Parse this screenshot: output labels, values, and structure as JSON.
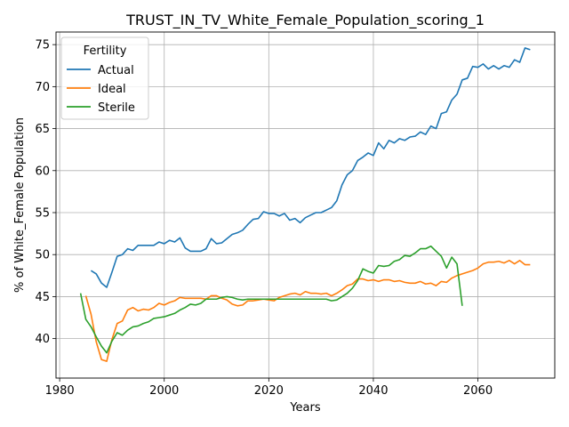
{
  "chart_data": {
    "type": "line",
    "title": "TRUST_IN_TV_White_Female_Population_scoring_1",
    "xlabel": "Years",
    "ylabel": "% of White_Female Population",
    "xlim": [
      1979.3,
      2074.7
    ],
    "ylim": [
      35.3,
      76.5
    ],
    "xticks": [
      1980,
      2000,
      2020,
      2040,
      2060
    ],
    "yticks": [
      40,
      45,
      50,
      55,
      60,
      65,
      70,
      75
    ],
    "grid": true,
    "legend": {
      "title": "Fertility",
      "placement": "upper-left"
    },
    "series": [
      {
        "name": "Actual",
        "color": "#1f77b4",
        "x": [
          1986,
          1987,
          1988,
          1989,
          1990,
          1991,
          1992,
          1993,
          1994,
          1995,
          1996,
          1997,
          1998,
          1999,
          2000,
          2001,
          2002,
          2003,
          2004,
          2005,
          2006,
          2007,
          2008,
          2009,
          2010,
          2011,
          2012,
          2013,
          2014,
          2015,
          2016,
          2017,
          2018,
          2019,
          2020,
          2021,
          2022,
          2023,
          2024,
          2025,
          2026,
          2027,
          2028,
          2029,
          2030,
          2031,
          2032,
          2033,
          2034,
          2035,
          2036,
          2037,
          2038,
          2039,
          2040,
          2041,
          2042,
          2043,
          2044,
          2045,
          2046,
          2047,
          2048,
          2049,
          2050,
          2051,
          2052,
          2053,
          2054,
          2055,
          2056,
          2057,
          2058,
          2059,
          2060,
          2061,
          2062,
          2063,
          2064,
          2065,
          2066,
          2067,
          2068,
          2069,
          2070
        ],
        "y": [
          48.1,
          47.7,
          46.6,
          46.1,
          47.9,
          49.8,
          50.0,
          50.7,
          50.5,
          51.1,
          51.1,
          51.1,
          51.1,
          51.5,
          51.3,
          51.7,
          51.5,
          52.0,
          50.8,
          50.4,
          50.4,
          50.4,
          50.7,
          51.9,
          51.3,
          51.4,
          51.9,
          52.4,
          52.6,
          52.9,
          53.6,
          54.2,
          54.3,
          55.1,
          54.9,
          54.9,
          54.6,
          54.9,
          54.1,
          54.3,
          53.8,
          54.4,
          54.7,
          55.0,
          55.0,
          55.3,
          55.6,
          56.4,
          58.3,
          59.5,
          60.0,
          61.2,
          61.6,
          62.1,
          61.8,
          63.3,
          62.6,
          63.6,
          63.3,
          63.8,
          63.6,
          64.0,
          64.1,
          64.6,
          64.3,
          65.3,
          65.0,
          66.8,
          67.0,
          68.4,
          69.1,
          70.8,
          71.0,
          72.4,
          72.3,
          72.7,
          72.1,
          72.5,
          72.1,
          72.5,
          72.3,
          73.2,
          72.9,
          74.6,
          74.4
        ]
      },
      {
        "name": "Ideal",
        "color": "#ff7f0e",
        "x": [
          1985,
          1986,
          1987,
          1988,
          1989,
          1990,
          1991,
          1992,
          1993,
          1994,
          1995,
          1996,
          1997,
          1998,
          1999,
          2000,
          2001,
          2002,
          2003,
          2004,
          2005,
          2006,
          2007,
          2008,
          2009,
          2010,
          2011,
          2012,
          2013,
          2014,
          2015,
          2016,
          2017,
          2018,
          2019,
          2020,
          2021,
          2022,
          2023,
          2024,
          2025,
          2026,
          2027,
          2028,
          2029,
          2030,
          2031,
          2032,
          2033,
          2034,
          2035,
          2036,
          2037,
          2038,
          2039,
          2040,
          2041,
          2042,
          2043,
          2044,
          2045,
          2046,
          2047,
          2048,
          2049,
          2050,
          2051,
          2052,
          2053,
          2054,
          2055,
          2056,
          2057,
          2058,
          2059,
          2060,
          2061,
          2062,
          2063,
          2064,
          2065,
          2066,
          2067,
          2068,
          2069,
          2070
        ],
        "y": [
          45.1,
          42.9,
          39.6,
          37.5,
          37.3,
          39.9,
          41.8,
          42.1,
          43.4,
          43.7,
          43.3,
          43.5,
          43.4,
          43.7,
          44.2,
          44.0,
          44.3,
          44.5,
          44.9,
          44.8,
          44.8,
          44.8,
          44.8,
          44.7,
          45.1,
          45.1,
          44.8,
          44.6,
          44.1,
          43.9,
          44.0,
          44.5,
          44.5,
          44.6,
          44.7,
          44.6,
          44.5,
          44.9,
          45.1,
          45.3,
          45.4,
          45.2,
          45.6,
          45.4,
          45.4,
          45.3,
          45.4,
          45.1,
          45.4,
          45.8,
          46.3,
          46.5,
          47.1,
          47.1,
          46.9,
          47.0,
          46.8,
          47.0,
          47.0,
          46.8,
          46.9,
          46.7,
          46.6,
          46.6,
          46.8,
          46.5,
          46.6,
          46.3,
          46.8,
          46.7,
          47.2,
          47.5,
          47.7,
          47.9,
          48.1,
          48.4,
          48.9,
          49.1,
          49.1,
          49.2,
          49.0,
          49.3,
          48.9,
          49.3,
          48.8,
          48.8
        ]
      },
      {
        "name": "Sterile",
        "color": "#2ca02c",
        "x": [
          1984,
          1985,
          1986,
          1987,
          1988,
          1989,
          1990,
          1991,
          1992,
          1993,
          1994,
          1995,
          1996,
          1997,
          1998,
          1999,
          2000,
          2001,
          2002,
          2003,
          2004,
          2005,
          2006,
          2007,
          2008,
          2009,
          2010,
          2011,
          2012,
          2013,
          2014,
          2015,
          2016,
          2017,
          2018,
          2019,
          2020,
          2021,
          2022,
          2023,
          2024,
          2025,
          2026,
          2027,
          2028,
          2029,
          2030,
          2031,
          2032,
          2033,
          2034,
          2035,
          2036,
          2037,
          2038,
          2039,
          2040,
          2041,
          2042,
          2043,
          2044,
          2045,
          2046,
          2047,
          2048,
          2049,
          2050,
          2051,
          2052,
          2053,
          2054,
          2055,
          2056,
          2057
        ],
        "y": [
          45.4,
          42.3,
          41.4,
          40.2,
          39.1,
          38.3,
          39.7,
          40.7,
          40.4,
          41.0,
          41.4,
          41.5,
          41.8,
          42.0,
          42.4,
          42.5,
          42.6,
          42.8,
          43.0,
          43.4,
          43.7,
          44.1,
          44.0,
          44.2,
          44.7,
          44.7,
          44.7,
          44.9,
          45.0,
          44.9,
          44.7,
          44.6,
          44.7,
          44.7,
          44.7,
          44.7,
          44.7,
          44.7,
          44.7,
          44.7,
          44.7,
          44.7,
          44.7,
          44.7,
          44.7,
          44.7,
          44.7,
          44.7,
          44.5,
          44.6,
          45.0,
          45.4,
          46.0,
          46.9,
          48.3,
          48.0,
          47.8,
          48.7,
          48.6,
          48.7,
          49.2,
          49.4,
          49.9,
          49.8,
          50.2,
          50.7,
          50.7,
          51.0,
          50.4,
          49.8,
          48.4,
          49.7,
          48.9,
          43.9
        ]
      }
    ]
  }
}
